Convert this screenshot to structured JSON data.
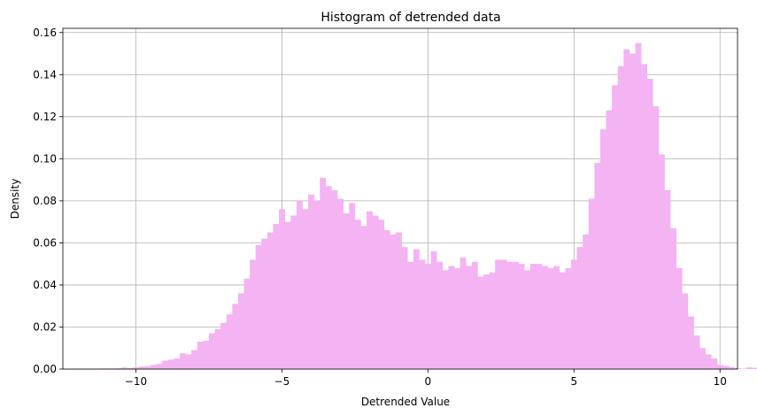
{
  "chart_data": {
    "type": "bar",
    "title": "Histogram of detrended data",
    "xlabel": "Detrended Value",
    "ylabel": "Density",
    "xlim": [
      -12.5,
      10.6
    ],
    "ylim": [
      0.0,
      0.162
    ],
    "grid": true,
    "bar_color": "#f4b3f2",
    "bin_start": -11.3,
    "bin_width": 0.2,
    "x_ticks": [
      -10,
      -5,
      0,
      5,
      10
    ],
    "x_tick_labels": [
      "−10",
      "−5",
      "0",
      "5",
      "10"
    ],
    "y_ticks": [
      0.0,
      0.02,
      0.04,
      0.06,
      0.08,
      0.1,
      0.12,
      0.14,
      0.16
    ],
    "y_tick_labels": [
      "0.00",
      "0.02",
      "0.04",
      "0.06",
      "0.08",
      "0.10",
      "0.12",
      "0.14",
      "0.16"
    ],
    "values": [
      0.0003,
      0.0003,
      0.0003,
      0.0004,
      0.0008,
      0.0005,
      0.0008,
      0.0012,
      0.0014,
      0.002,
      0.0025,
      0.004,
      0.0045,
      0.005,
      0.0075,
      0.007,
      0.009,
      0.013,
      0.0135,
      0.017,
      0.019,
      0.022,
      0.026,
      0.031,
      0.036,
      0.043,
      0.052,
      0.059,
      0.062,
      0.065,
      0.069,
      0.076,
      0.07,
      0.073,
      0.08,
      0.076,
      0.083,
      0.08,
      0.091,
      0.087,
      0.085,
      0.081,
      0.074,
      0.079,
      0.071,
      0.068,
      0.075,
      0.073,
      0.071,
      0.066,
      0.064,
      0.065,
      0.058,
      0.051,
      0.057,
      0.052,
      0.05,
      0.056,
      0.051,
      0.047,
      0.049,
      0.048,
      0.053,
      0.049,
      0.051,
      0.044,
      0.045,
      0.046,
      0.052,
      0.052,
      0.051,
      0.051,
      0.05,
      0.047,
      0.05,
      0.05,
      0.049,
      0.048,
      0.049,
      0.046,
      0.048,
      0.052,
      0.058,
      0.064,
      0.081,
      0.098,
      0.114,
      0.123,
      0.135,
      0.144,
      0.152,
      0.15,
      0.155,
      0.145,
      0.138,
      0.125,
      0.102,
      0.085,
      0.067,
      0.048,
      0.036,
      0.025,
      0.016,
      0.01,
      0.007,
      0.005,
      0.002,
      0.0015,
      0.001,
      0.0004,
      0.0002,
      0.0008,
      0.0006,
      0.0005,
      0.0002,
      0.0,
      0.0003
    ]
  }
}
